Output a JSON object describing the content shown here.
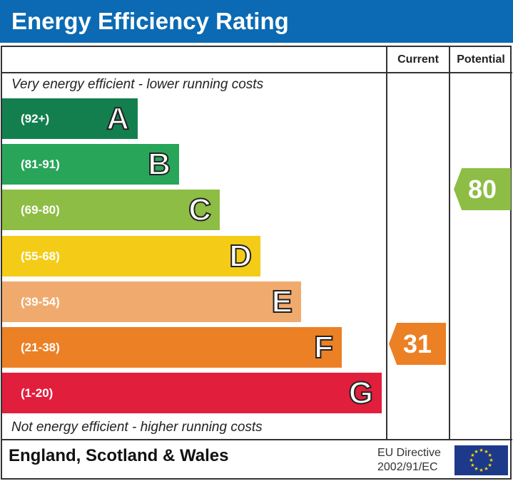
{
  "header": {
    "title": "Energy Efficiency Rating"
  },
  "columns": {
    "current": "Current",
    "potential": "Potential"
  },
  "notes": {
    "top": "Very energy efficient - lower running costs",
    "bottom": "Not energy efficient - higher running costs"
  },
  "chart_data": {
    "type": "bar",
    "title": "Energy Efficiency Rating",
    "bands": [
      {
        "letter": "A",
        "range": "(92+)",
        "color": "#137f4f"
      },
      {
        "letter": "B",
        "range": "(81-91)",
        "color": "#29a55a"
      },
      {
        "letter": "C",
        "range": "(69-80)",
        "color": "#8dbd44"
      },
      {
        "letter": "D",
        "range": "(55-68)",
        "color": "#f4cc17"
      },
      {
        "letter": "E",
        "range": "(39-54)",
        "color": "#f1aa6e"
      },
      {
        "letter": "F",
        "range": "(21-38)",
        "color": "#ec8025"
      },
      {
        "letter": "G",
        "range": "(1-20)",
        "color": "#e11e3c"
      }
    ],
    "current": {
      "value": 31,
      "band": "F",
      "color": "#ec8025"
    },
    "potential": {
      "value": 80,
      "band": "C",
      "color": "#8dbd44"
    }
  },
  "footer": {
    "region": "England, Scotland & Wales",
    "directive_line1": "EU Directive",
    "directive_line2": "2002/91/EC"
  }
}
